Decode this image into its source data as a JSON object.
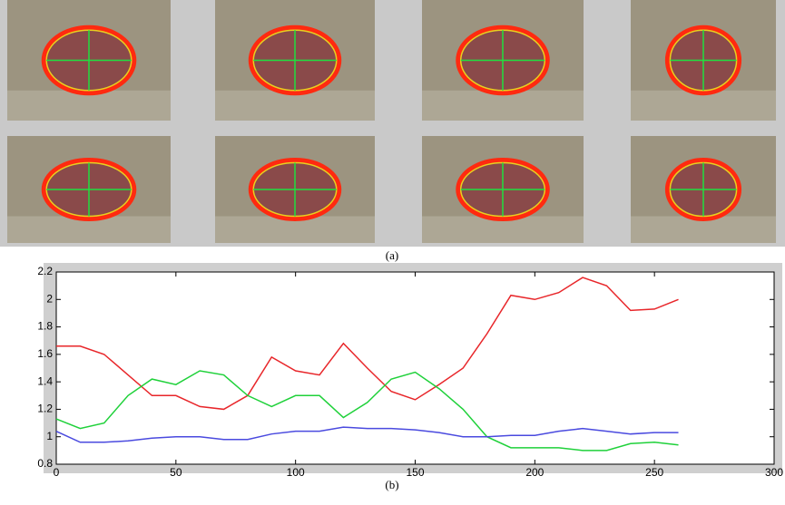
{
  "captions": [
    "(a)",
    "(b)"
  ],
  "chart_data": {
    "type": "line",
    "x": [
      0,
      10,
      20,
      30,
      40,
      50,
      60,
      70,
      80,
      90,
      100,
      110,
      120,
      130,
      140,
      150,
      160,
      170,
      180,
      190,
      200,
      210,
      220,
      230,
      240,
      250,
      260
    ],
    "series": [
      {
        "color": "#e8262a",
        "values": [
          1.66,
          1.66,
          1.6,
          1.45,
          1.3,
          1.3,
          1.22,
          1.2,
          1.3,
          1.58,
          1.48,
          1.45,
          1.68,
          1.5,
          1.33,
          1.27,
          1.38,
          1.5,
          1.75,
          2.03,
          2.0,
          2.05,
          2.16,
          2.1,
          1.92,
          1.93,
          2.0
        ]
      },
      {
        "color": "#1fd13a",
        "values": [
          1.13,
          1.06,
          1.1,
          1.3,
          1.42,
          1.38,
          1.48,
          1.45,
          1.3,
          1.22,
          1.3,
          1.3,
          1.14,
          1.25,
          1.42,
          1.47,
          1.35,
          1.2,
          1.0,
          0.92,
          0.92,
          0.92,
          0.9,
          0.9,
          0.95,
          0.96,
          0.94
        ]
      },
      {
        "color": "#4a4adf",
        "values": [
          1.04,
          0.96,
          0.96,
          0.97,
          0.99,
          1.0,
          1.0,
          0.98,
          0.98,
          1.02,
          1.04,
          1.04,
          1.07,
          1.06,
          1.06,
          1.05,
          1.03,
          1.0,
          1.0,
          1.01,
          1.01,
          1.04,
          1.06,
          1.04,
          1.02,
          1.03,
          1.03
        ]
      }
    ],
    "xlim": [
      0,
      300
    ],
    "xticks": [
      0,
      50,
      100,
      150,
      200,
      250,
      300
    ],
    "ylim": [
      0.8,
      2.2
    ],
    "yticks": [
      0.8,
      1,
      1.2,
      1.4,
      1.6,
      1.8,
      2,
      2.2
    ]
  }
}
